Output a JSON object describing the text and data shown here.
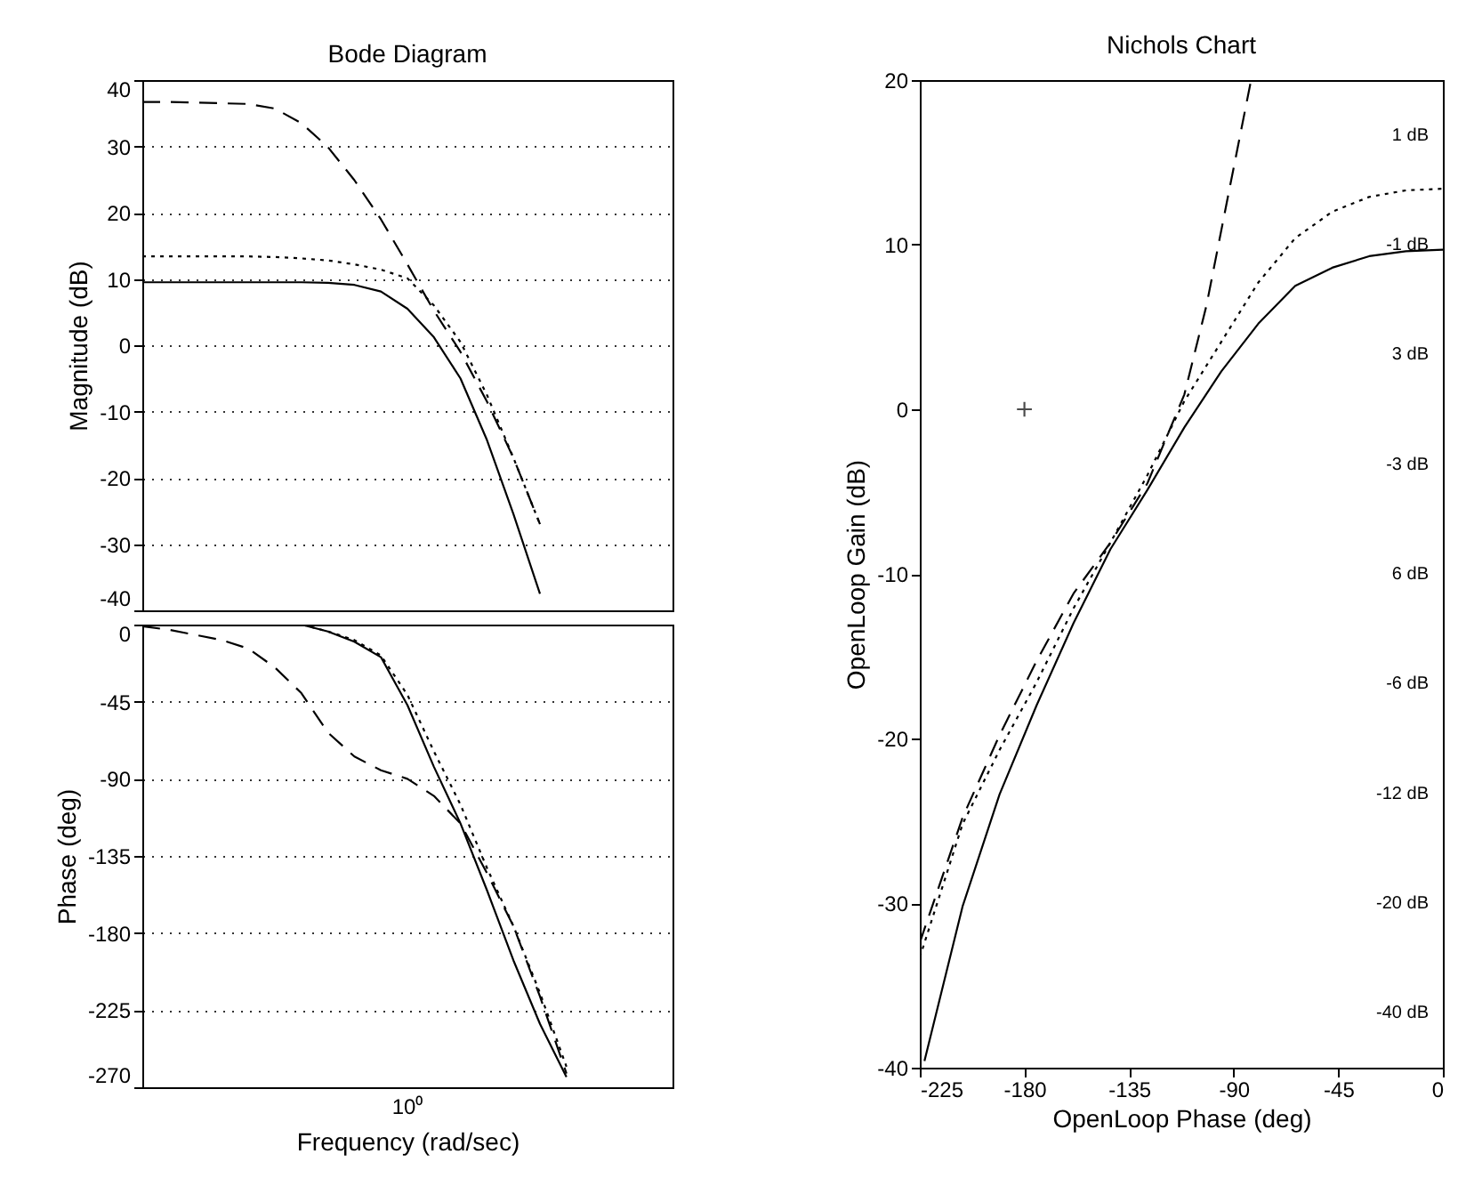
{
  "chart_data": [
    {
      "type": "line",
      "title": "Bode Diagram",
      "ylabel": "Magnitude (dB)",
      "grid": "y",
      "tick_labels": "y",
      "categories": [
        null,
        null,
        null,
        null,
        null,
        null,
        null,
        null,
        null,
        null,
        null,
        null,
        null,
        null,
        null,
        null,
        null,
        null,
        null,
        null,
        null
      ],
      "ylim": [
        -40,
        40
      ],
      "yticks": [
        -40,
        -30,
        -20,
        -10,
        0,
        10,
        20,
        30,
        40
      ],
      "series": [
        {
          "color": "#000000",
          "line_style": "solid",
          "values": [
            9.5,
            9.5,
            9.5,
            9.5,
            9.5,
            9.5,
            9.5,
            9.4,
            9.1,
            8.1,
            5.5,
            1.2,
            -5.0,
            -14.3,
            -25.5,
            -37.5,
            null,
            null,
            null,
            null,
            null
          ]
        },
        {
          "color": "#000000",
          "line_style": "dotted",
          "values": [
            13.4,
            13.4,
            13.4,
            13.4,
            13.4,
            13.3,
            13.1,
            12.8,
            12.2,
            11.4,
            10.1,
            6.0,
            0.5,
            -7.5,
            -17,
            -27,
            null,
            null,
            null,
            null,
            null
          ]
        },
        {
          "color": "#000000",
          "line_style": "dashed",
          "values": [
            36.7,
            36.7,
            36.6,
            36.5,
            36.4,
            35.7,
            33.5,
            29.9,
            24.9,
            19,
            12.2,
            5.2,
            -1,
            -8.5,
            -17,
            -27,
            null,
            null,
            null,
            null,
            null
          ]
        }
      ]
    },
    {
      "type": "line",
      "xlabel": "Frequency  (rad/sec)",
      "ylabel": "Phase (deg)",
      "grid": "y",
      "tick_labels": "y",
      "categories": [
        null,
        null,
        null,
        null,
        null,
        null,
        null,
        null,
        null,
        null,
        null,
        null,
        null,
        null,
        null,
        null,
        null,
        null,
        null,
        null,
        null
      ],
      "ylim": [
        -270,
        0
      ],
      "yticks": [
        -270,
        -225,
        -180,
        -135,
        -90,
        -45,
        0
      ],
      "annotations": [
        "10⁰"
      ],
      "series": [
        {
          "color": "#000000",
          "line_style": "solid",
          "values": [
            0,
            0,
            0,
            0,
            0,
            0,
            0,
            -4,
            -10,
            -19,
            -47,
            -83,
            -116,
            -155,
            -196,
            -233,
            -264,
            null,
            null,
            null,
            null
          ]
        },
        {
          "color": "#000000",
          "line_style": "dotted",
          "values": [
            0,
            0,
            0,
            0,
            0,
            0,
            0,
            -4,
            -9,
            -18,
            -41,
            -74,
            -105,
            -142,
            -176,
            -215,
            -258,
            null,
            null,
            null,
            null
          ]
        },
        {
          "color": "#000000",
          "line_style": "dashed",
          "values": [
            -1,
            -3,
            -6,
            -9,
            -14,
            -25,
            -40,
            -63,
            -77,
            -85,
            -90,
            -100,
            -116,
            -145,
            -176,
            -217,
            -262,
            null,
            null,
            null,
            null
          ]
        }
      ]
    },
    {
      "type": "line",
      "title": "Nichols Chart",
      "xlabel": "OpenLoop Phase (deg)",
      "ylabel": "OpenLoop Gain (dB)",
      "xlim": [
        -225,
        0
      ],
      "xticks": [
        -225,
        -180,
        -135,
        -90,
        -45,
        0
      ],
      "ylim": [
        -40,
        20
      ],
      "yticks": [
        -40,
        -30,
        -20,
        -10,
        0,
        10,
        20
      ],
      "annotations": [
        "1 dB",
        "-1 dB",
        "3 dB",
        "-3 dB",
        "6 dB",
        "-6 dB",
        "-12 dB",
        "-20 dB",
        "-40 dB"
      ],
      "series": [
        {
          "color": "#000000",
          "line_style": "solid",
          "x": [
            -223,
            -206.6,
            -190.7,
            -174.8,
            -158.9,
            -143,
            -127.1,
            -111.2,
            -95.3,
            -79.4,
            -63.5,
            -47.6,
            -31.7,
            -15.9,
            0
          ],
          "values": [
            -39.6,
            -30.2,
            -23.4,
            -18,
            -13,
            -8.5,
            -4.9,
            -1.1,
            2.3,
            5.2,
            7.5,
            8.6,
            9.3,
            9.6,
            9.7
          ]
        },
        {
          "color": "#000000",
          "line_style": "dotted",
          "x": [
            -225,
            -206.6,
            -190.7,
            -174.8,
            -158.9,
            -143,
            -127.1,
            -111.2,
            -95.3,
            -79.4,
            -63.5,
            -47.6,
            -31.7,
            -15.9,
            0
          ],
          "values": [
            -33.3,
            -25.2,
            -20.7,
            -16.6,
            -12.1,
            -8.1,
            -4,
            0.5,
            4.1,
            7.7,
            10.4,
            12,
            12.9,
            13.3,
            13.4
          ]
        },
        {
          "color": "#000000",
          "line_style": "dashed",
          "x": [
            -225,
            -206.6,
            -190.7,
            -174.8,
            -158.9,
            -143,
            -127.1,
            -111.2,
            -101.7,
            -92.2,
            -82.5
          ],
          "values": [
            -32.4,
            -24.8,
            -19.8,
            -15.3,
            -11.2,
            -8.1,
            -4.5,
            0.9,
            6.3,
            13.1,
            20
          ]
        },
        {
          "type": "scatter",
          "marker": "cross",
          "color": "#000000",
          "x": [
            -180
          ],
          "values": [
            0
          ]
        }
      ]
    }
  ]
}
